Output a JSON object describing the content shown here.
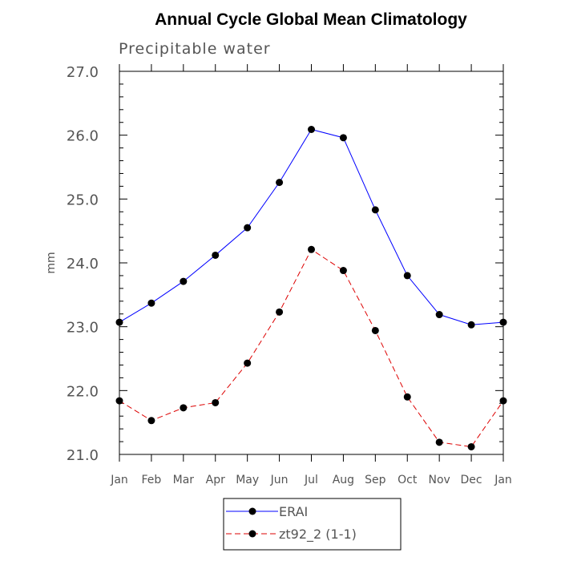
{
  "chart_data": {
    "type": "line",
    "title": "Annual Cycle Global Mean Climatology",
    "subtitle": "Precipitable water",
    "xlabel": "",
    "ylabel": "mm",
    "categories": [
      "Jan",
      "Feb",
      "Mar",
      "Apr",
      "May",
      "Jun",
      "Jul",
      "Aug",
      "Sep",
      "Oct",
      "Nov",
      "Dec",
      "Jan"
    ],
    "ylim": [
      21.0,
      27.0
    ],
    "yticks": [
      "21.0",
      "22.0",
      "23.0",
      "24.0",
      "25.0",
      "26.0",
      "27.0"
    ],
    "grid": false,
    "legend_position": "bottom",
    "series": [
      {
        "name": "ERAI",
        "color": "#0000ff",
        "dash": "solid",
        "values": [
          23.07,
          23.37,
          23.71,
          24.12,
          24.55,
          25.26,
          26.09,
          25.96,
          24.83,
          23.8,
          23.19,
          23.03,
          23.07
        ]
      },
      {
        "name": "zt92_2 (1-1)",
        "color": "#dd0000",
        "dash": "dashed",
        "values": [
          21.84,
          21.53,
          21.73,
          21.81,
          22.43,
          23.23,
          24.21,
          23.88,
          22.94,
          21.9,
          21.19,
          21.12,
          21.84
        ]
      }
    ]
  }
}
